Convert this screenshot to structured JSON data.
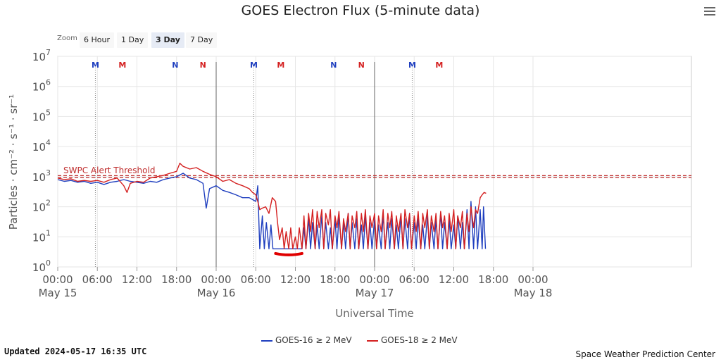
{
  "chart_data": {
    "type": "line",
    "title": "GOES Electron Flux (5-minute data)",
    "xlabel": "Universal Time",
    "ylabel": "Particles · cm⁻² · s⁻¹ · sr⁻¹",
    "yscale": "log",
    "ylim": [
      1,
      10000000
    ],
    "xlim_hours": [
      0,
      96
    ],
    "y_ticks": [
      {
        "base": "10",
        "exp": "0",
        "value": 1
      },
      {
        "base": "10",
        "exp": "1",
        "value": 10
      },
      {
        "base": "10",
        "exp": "2",
        "value": 100
      },
      {
        "base": "10",
        "exp": "3",
        "value": 1000
      },
      {
        "base": "10",
        "exp": "4",
        "value": 10000
      },
      {
        "base": "10",
        "exp": "5",
        "value": 100000
      },
      {
        "base": "10",
        "exp": "6",
        "value": 1000000
      },
      {
        "base": "10",
        "exp": "7",
        "value": 10000000
      }
    ],
    "x_ticks": [
      {
        "hour": 0,
        "label": "00:00",
        "date": "May 15"
      },
      {
        "hour": 6,
        "label": "06:00",
        "date": ""
      },
      {
        "hour": 12,
        "label": "12:00",
        "date": ""
      },
      {
        "hour": 18,
        "label": "18:00",
        "date": ""
      },
      {
        "hour": 24,
        "label": "00:00",
        "date": "May 16"
      },
      {
        "hour": 30,
        "label": "06:00",
        "date": ""
      },
      {
        "hour": 36,
        "label": "12:00",
        "date": ""
      },
      {
        "hour": 42,
        "label": "18:00",
        "date": ""
      },
      {
        "hour": 48,
        "label": "00:00",
        "date": "May 17"
      },
      {
        "hour": 54,
        "label": "06:00",
        "date": ""
      },
      {
        "hour": 60,
        "label": "12:00",
        "date": ""
      },
      {
        "hour": 66,
        "label": "18:00",
        "date": ""
      },
      {
        "hour": 72,
        "label": "00:00",
        "date": "May 18"
      }
    ],
    "threshold": {
      "label": "SWPC Alert Threshold",
      "value": 1000
    },
    "day_lines_hours": [
      24,
      48
    ],
    "noon_markers": [
      {
        "hour": 5.7,
        "label": "M",
        "color": "#1f3fbf",
        "dotted": true
      },
      {
        "hour": 9.8,
        "label": "M",
        "color": "#d42020",
        "dotted": false
      },
      {
        "hour": 17.8,
        "label": "N",
        "color": "#1f3fbf",
        "dotted": false
      },
      {
        "hour": 22.0,
        "label": "N",
        "color": "#d42020",
        "dotted": false
      },
      {
        "hour": 29.7,
        "label": "M",
        "color": "#1f3fbf",
        "dotted": true
      },
      {
        "hour": 33.8,
        "label": "M",
        "color": "#d42020",
        "dotted": false
      },
      {
        "hour": 41.8,
        "label": "N",
        "color": "#1f3fbf",
        "dotted": false
      },
      {
        "hour": 46.0,
        "label": "N",
        "color": "#d42020",
        "dotted": false
      },
      {
        "hour": 53.7,
        "label": "M",
        "color": "#1f3fbf",
        "dotted": true
      },
      {
        "hour": 57.8,
        "label": "M",
        "color": "#d42020",
        "dotted": false
      }
    ],
    "annotation": {
      "from_hour": 33.0,
      "to_hour": 37.0,
      "value": 2.8,
      "color": "#e00000"
    },
    "series": [
      {
        "name": "GOES-16 ≥ 2 MeV",
        "color": "#1f3fbf",
        "points": [
          [
            0,
            800
          ],
          [
            1,
            700
          ],
          [
            2,
            750
          ],
          [
            3,
            650
          ],
          [
            4,
            700
          ],
          [
            5,
            600
          ],
          [
            6,
            650
          ],
          [
            7,
            550
          ],
          [
            8,
            650
          ],
          [
            9,
            700
          ],
          [
            10,
            800
          ],
          [
            11,
            700
          ],
          [
            12,
            650
          ],
          [
            13,
            600
          ],
          [
            14,
            700
          ],
          [
            15,
            650
          ],
          [
            16,
            800
          ],
          [
            17,
            900
          ],
          [
            18,
            1000
          ],
          [
            19,
            1300
          ],
          [
            20,
            900
          ],
          [
            21,
            800
          ],
          [
            22,
            600
          ],
          [
            22.5,
            90
          ],
          [
            23,
            400
          ],
          [
            24,
            500
          ],
          [
            25,
            350
          ],
          [
            26,
            300
          ],
          [
            27,
            250
          ],
          [
            28,
            200
          ],
          [
            29,
            200
          ],
          [
            30,
            150
          ],
          [
            30.3,
            500
          ],
          [
            30.6,
            4
          ],
          [
            31,
            50
          ],
          [
            31.3,
            4
          ],
          [
            31.6,
            30
          ],
          [
            32,
            4
          ],
          [
            32.3,
            25
          ],
          [
            32.6,
            4
          ],
          [
            33,
            4
          ],
          [
            34,
            4
          ],
          [
            35,
            4
          ],
          [
            36,
            4
          ],
          [
            37,
            4
          ],
          [
            37.3,
            20
          ],
          [
            37.6,
            4
          ],
          [
            38,
            40
          ],
          [
            38.3,
            4
          ],
          [
            38.6,
            30
          ],
          [
            39,
            4
          ],
          [
            39.3,
            25
          ],
          [
            39.6,
            4
          ],
          [
            40,
            50
          ],
          [
            40.3,
            4
          ],
          [
            40.6,
            30
          ],
          [
            41,
            4
          ],
          [
            41.3,
            20
          ],
          [
            41.6,
            4
          ],
          [
            42,
            40
          ],
          [
            42.3,
            4
          ],
          [
            42.6,
            50
          ],
          [
            43,
            4
          ],
          [
            43.3,
            30
          ],
          [
            43.6,
            4
          ],
          [
            44,
            60
          ],
          [
            44.3,
            4
          ],
          [
            44.6,
            30
          ],
          [
            45,
            4
          ],
          [
            45.3,
            40
          ],
          [
            45.6,
            4
          ],
          [
            46,
            25
          ],
          [
            46.3,
            4
          ],
          [
            46.6,
            50
          ],
          [
            47,
            4
          ],
          [
            47.3,
            30
          ],
          [
            47.6,
            4
          ],
          [
            48,
            40
          ],
          [
            48.3,
            4
          ],
          [
            48.6,
            25
          ],
          [
            49,
            4
          ],
          [
            49.3,
            60
          ],
          [
            49.6,
            4
          ],
          [
            50,
            30
          ],
          [
            50.3,
            4
          ],
          [
            50.6,
            40
          ],
          [
            51,
            4
          ],
          [
            51.3,
            25
          ],
          [
            51.6,
            4
          ],
          [
            52,
            50
          ],
          [
            52.3,
            4
          ],
          [
            52.6,
            40
          ],
          [
            53,
            4
          ],
          [
            53.3,
            60
          ],
          [
            53.6,
            4
          ],
          [
            54,
            30
          ],
          [
            54.3,
            4
          ],
          [
            54.6,
            40
          ],
          [
            55,
            4
          ],
          [
            55.3,
            25
          ],
          [
            55.6,
            4
          ],
          [
            56,
            50
          ],
          [
            56.3,
            4
          ],
          [
            56.6,
            30
          ],
          [
            57,
            4
          ],
          [
            57.3,
            40
          ],
          [
            57.6,
            4
          ],
          [
            58,
            60
          ],
          [
            58.3,
            4
          ],
          [
            58.6,
            30
          ],
          [
            59,
            4
          ],
          [
            59.3,
            40
          ],
          [
            59.6,
            4
          ],
          [
            60,
            25
          ],
          [
            60.3,
            4
          ],
          [
            60.6,
            50
          ],
          [
            61,
            4
          ],
          [
            61.3,
            30
          ],
          [
            61.6,
            4
          ],
          [
            62,
            80
          ],
          [
            62.3,
            4
          ],
          [
            62.6,
            150
          ],
          [
            63,
            4
          ],
          [
            63.3,
            100
          ],
          [
            63.6,
            4
          ],
          [
            64,
            80
          ],
          [
            64.3,
            4
          ],
          [
            64.5,
            100
          ],
          [
            64.8,
            4
          ]
        ]
      },
      {
        "name": "GOES-18 ≥ 2 MeV",
        "color": "#d42020",
        "points": [
          [
            0,
            900
          ],
          [
            1,
            800
          ],
          [
            2,
            850
          ],
          [
            3,
            700
          ],
          [
            4,
            750
          ],
          [
            5,
            700
          ],
          [
            6,
            750
          ],
          [
            7,
            650
          ],
          [
            8,
            800
          ],
          [
            9,
            900
          ],
          [
            10,
            500
          ],
          [
            10.5,
            300
          ],
          [
            11,
            600
          ],
          [
            12,
            700
          ],
          [
            13,
            650
          ],
          [
            14,
            900
          ],
          [
            15,
            1000
          ],
          [
            16,
            1100
          ],
          [
            17,
            1300
          ],
          [
            18,
            1500
          ],
          [
            18.5,
            2800
          ],
          [
            19,
            2200
          ],
          [
            20,
            1800
          ],
          [
            21,
            2000
          ],
          [
            22,
            1500
          ],
          [
            23,
            1200
          ],
          [
            24,
            1000
          ],
          [
            25,
            700
          ],
          [
            26,
            800
          ],
          [
            27,
            600
          ],
          [
            28,
            500
          ],
          [
            29,
            400
          ],
          [
            29.5,
            300
          ],
          [
            30,
            250
          ],
          [
            30.3,
            150
          ],
          [
            30.6,
            80
          ],
          [
            31,
            90
          ],
          [
            31.5,
            100
          ],
          [
            32,
            60
          ],
          [
            32.5,
            200
          ],
          [
            33,
            150
          ],
          [
            33.3,
            30
          ],
          [
            33.6,
            8
          ],
          [
            34,
            20
          ],
          [
            34.3,
            4
          ],
          [
            34.6,
            15
          ],
          [
            35,
            4
          ],
          [
            35.3,
            20
          ],
          [
            35.6,
            4
          ],
          [
            36,
            10
          ],
          [
            36.3,
            4
          ],
          [
            36.6,
            20
          ],
          [
            37,
            4
          ],
          [
            37.3,
            50
          ],
          [
            37.6,
            4
          ],
          [
            38,
            60
          ],
          [
            38.3,
            15
          ],
          [
            38.6,
            80
          ],
          [
            39,
            4
          ],
          [
            39.3,
            70
          ],
          [
            39.6,
            20
          ],
          [
            40,
            80
          ],
          [
            40.3,
            4
          ],
          [
            40.6,
            60
          ],
          [
            41,
            25
          ],
          [
            41.3,
            80
          ],
          [
            41.6,
            4
          ],
          [
            42,
            50
          ],
          [
            42.3,
            20
          ],
          [
            42.6,
            70
          ],
          [
            43,
            4
          ],
          [
            43.3,
            40
          ],
          [
            43.6,
            15
          ],
          [
            44,
            60
          ],
          [
            44.3,
            4
          ],
          [
            44.6,
            50
          ],
          [
            45,
            20
          ],
          [
            45.3,
            70
          ],
          [
            45.6,
            4
          ],
          [
            46,
            60
          ],
          [
            46.3,
            15
          ],
          [
            46.6,
            80
          ],
          [
            47,
            4
          ],
          [
            47.3,
            50
          ],
          [
            47.6,
            20
          ],
          [
            48,
            60
          ],
          [
            48.3,
            4
          ],
          [
            48.6,
            50
          ],
          [
            49,
            15
          ],
          [
            49.3,
            80
          ],
          [
            49.6,
            4
          ],
          [
            50,
            60
          ],
          [
            50.3,
            20
          ],
          [
            50.6,
            70
          ],
          [
            51,
            4
          ],
          [
            51.3,
            50
          ],
          [
            51.6,
            15
          ],
          [
            52,
            60
          ],
          [
            52.3,
            4
          ],
          [
            52.6,
            80
          ],
          [
            53,
            20
          ],
          [
            53.3,
            60
          ],
          [
            53.6,
            4
          ],
          [
            54,
            50
          ],
          [
            54.3,
            15
          ],
          [
            54.6,
            70
          ],
          [
            55,
            4
          ],
          [
            55.3,
            60
          ],
          [
            55.6,
            20
          ],
          [
            56,
            80
          ],
          [
            56.3,
            4
          ],
          [
            56.6,
            50
          ],
          [
            57,
            15
          ],
          [
            57.3,
            60
          ],
          [
            57.6,
            4
          ],
          [
            58,
            70
          ],
          [
            58.3,
            20
          ],
          [
            58.6,
            50
          ],
          [
            59,
            4
          ],
          [
            59.3,
            60
          ],
          [
            59.6,
            15
          ],
          [
            60,
            80
          ],
          [
            60.3,
            4
          ],
          [
            60.6,
            50
          ],
          [
            61,
            20
          ],
          [
            61.3,
            70
          ],
          [
            61.6,
            4
          ],
          [
            62,
            60
          ],
          [
            62.3,
            15
          ],
          [
            62.6,
            100
          ],
          [
            63,
            20
          ],
          [
            63.3,
            80
          ],
          [
            63.6,
            60
          ],
          [
            64,
            200
          ],
          [
            64.3,
            250
          ],
          [
            64.6,
            300
          ],
          [
            64.9,
            280
          ]
        ]
      }
    ]
  },
  "zoom": {
    "label": "Zoom",
    "buttons": [
      "6 Hour",
      "1 Day",
      "3 Day",
      "7 Day"
    ],
    "selected": "3 Day"
  },
  "footer": {
    "updated": "Updated 2024-05-17 16:35 UTC",
    "credit": "Space Weather Prediction Center"
  }
}
